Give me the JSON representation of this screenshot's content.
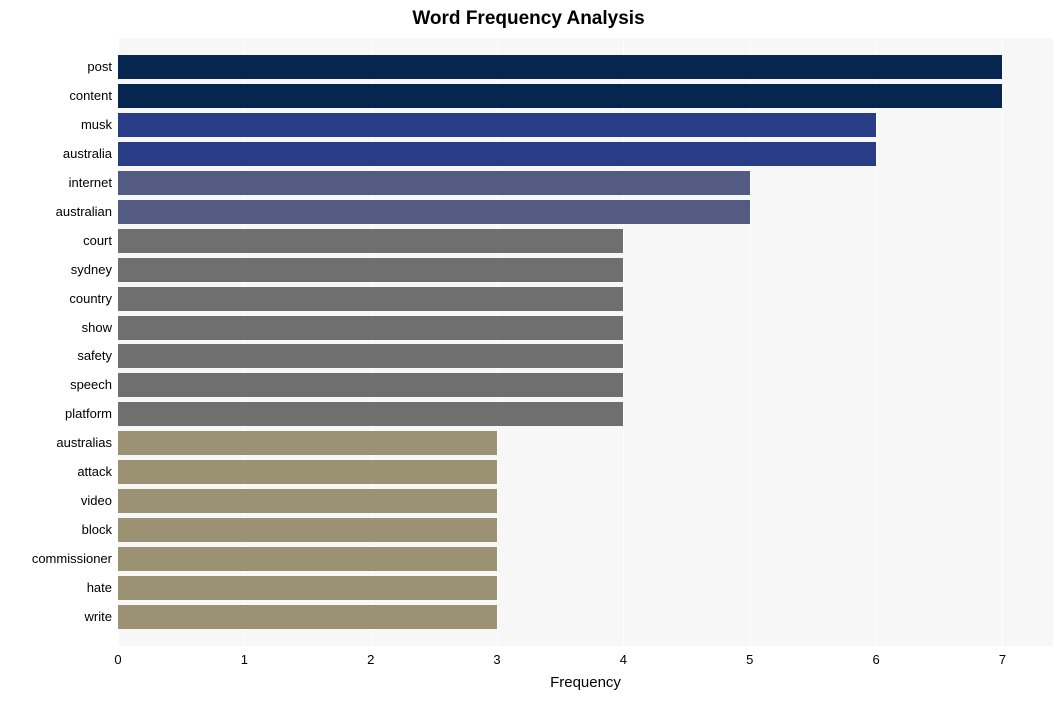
{
  "chart": {
    "type": "bar-horizontal",
    "title": "Word Frequency Analysis",
    "title_fontsize": 19,
    "title_fontweight": "bold",
    "xlabel": "Frequency",
    "xlabel_fontsize": 15,
    "background_color": "#ffffff",
    "plot_background_color": "#f7f7f7",
    "grid_color": "#ffffff",
    "xlim": [
      0,
      7.4
    ],
    "xtick_step": 1,
    "xticks": [
      0,
      1,
      2,
      3,
      4,
      5,
      6,
      7
    ],
    "tick_fontsize": 13,
    "bar_gap_ratio": 0.17,
    "categories": [
      "post",
      "content",
      "musk",
      "australia",
      "internet",
      "australian",
      "court",
      "sydney",
      "country",
      "show",
      "safety",
      "speech",
      "platform",
      "australias",
      "attack",
      "video",
      "block",
      "commissioner",
      "hate",
      "write"
    ],
    "values": [
      7,
      7,
      6,
      6,
      5,
      5,
      4,
      4,
      4,
      4,
      4,
      4,
      4,
      3,
      3,
      3,
      3,
      3,
      3,
      3
    ],
    "bar_colors": [
      "#06264f",
      "#06264f",
      "#293d87",
      "#293d87",
      "#545b82",
      "#545b82",
      "#6f6f6f",
      "#6f6f6f",
      "#6f6f6f",
      "#6f6f6f",
      "#6f6f6f",
      "#6f6f6f",
      "#6f6f6f",
      "#9b9273",
      "#9b9273",
      "#9b9273",
      "#9b9273",
      "#9b9273",
      "#9b9273",
      "#9b9273"
    ]
  }
}
